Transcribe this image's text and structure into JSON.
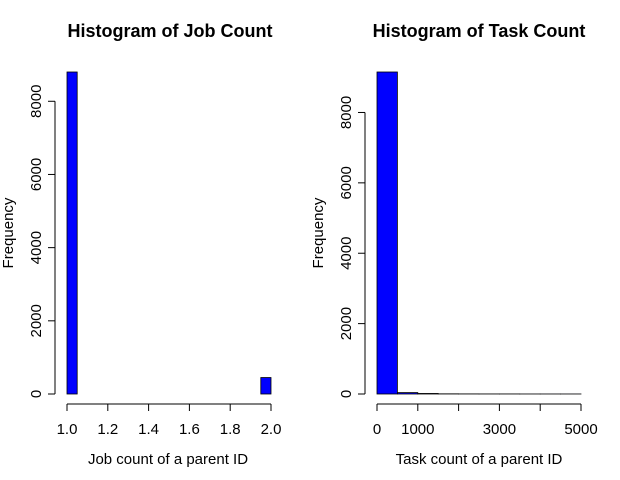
{
  "chart_data": [
    {
      "type": "bar",
      "title": "Histogram of Job Count",
      "xlabel": "Job count of a parent ID",
      "ylabel": "Frequency",
      "bin_width": 0.05,
      "bins_start": [
        1.0,
        1.05,
        1.1,
        1.15,
        1.2,
        1.25,
        1.3,
        1.35,
        1.4,
        1.45,
        1.5,
        1.55,
        1.6,
        1.65,
        1.7,
        1.75,
        1.8,
        1.85,
        1.9,
        1.95
      ],
      "values": [
        8800,
        0,
        0,
        0,
        0,
        0,
        0,
        0,
        0,
        0,
        0,
        0,
        0,
        0,
        0,
        0,
        0,
        0,
        0,
        450
      ],
      "xlim": [
        1.0,
        2.0
      ],
      "ylim": [
        0,
        8800
      ],
      "x_ticks": [
        1.0,
        1.2,
        1.4,
        1.6,
        1.8,
        2.0
      ],
      "x_tick_labels": [
        "1.0",
        "1.2",
        "1.4",
        "1.6",
        "1.8",
        "2.0"
      ],
      "y_ticks": [
        0,
        2000,
        4000,
        6000,
        8000
      ],
      "y_tick_labels": [
        "0",
        "2000",
        "4000",
        "6000",
        "8000"
      ],
      "bar_color": "#0000ff"
    },
    {
      "type": "bar",
      "title": "Histogram of Task Count",
      "xlabel": "Task count of a parent ID",
      "ylabel": "Frequency",
      "bin_width": 500,
      "bins_start": [
        0,
        500,
        1000,
        1500,
        2000,
        2500,
        3000,
        3500,
        4000,
        4500
      ],
      "values": [
        9150,
        40,
        15,
        5,
        3,
        2,
        2,
        1,
        1,
        1
      ],
      "xlim": [
        0,
        5000
      ],
      "ylim": [
        0,
        9150
      ],
      "x_ticks": [
        0,
        1000,
        2000,
        3000,
        4000,
        5000
      ],
      "x_tick_labels": [
        "0",
        "1000",
        "",
        "3000",
        "",
        "5000"
      ],
      "y_ticks": [
        0,
        2000,
        4000,
        6000,
        8000
      ],
      "y_tick_labels": [
        "0",
        "2000",
        "4000",
        "6000",
        "8000"
      ],
      "bar_color": "#0000ff"
    }
  ]
}
